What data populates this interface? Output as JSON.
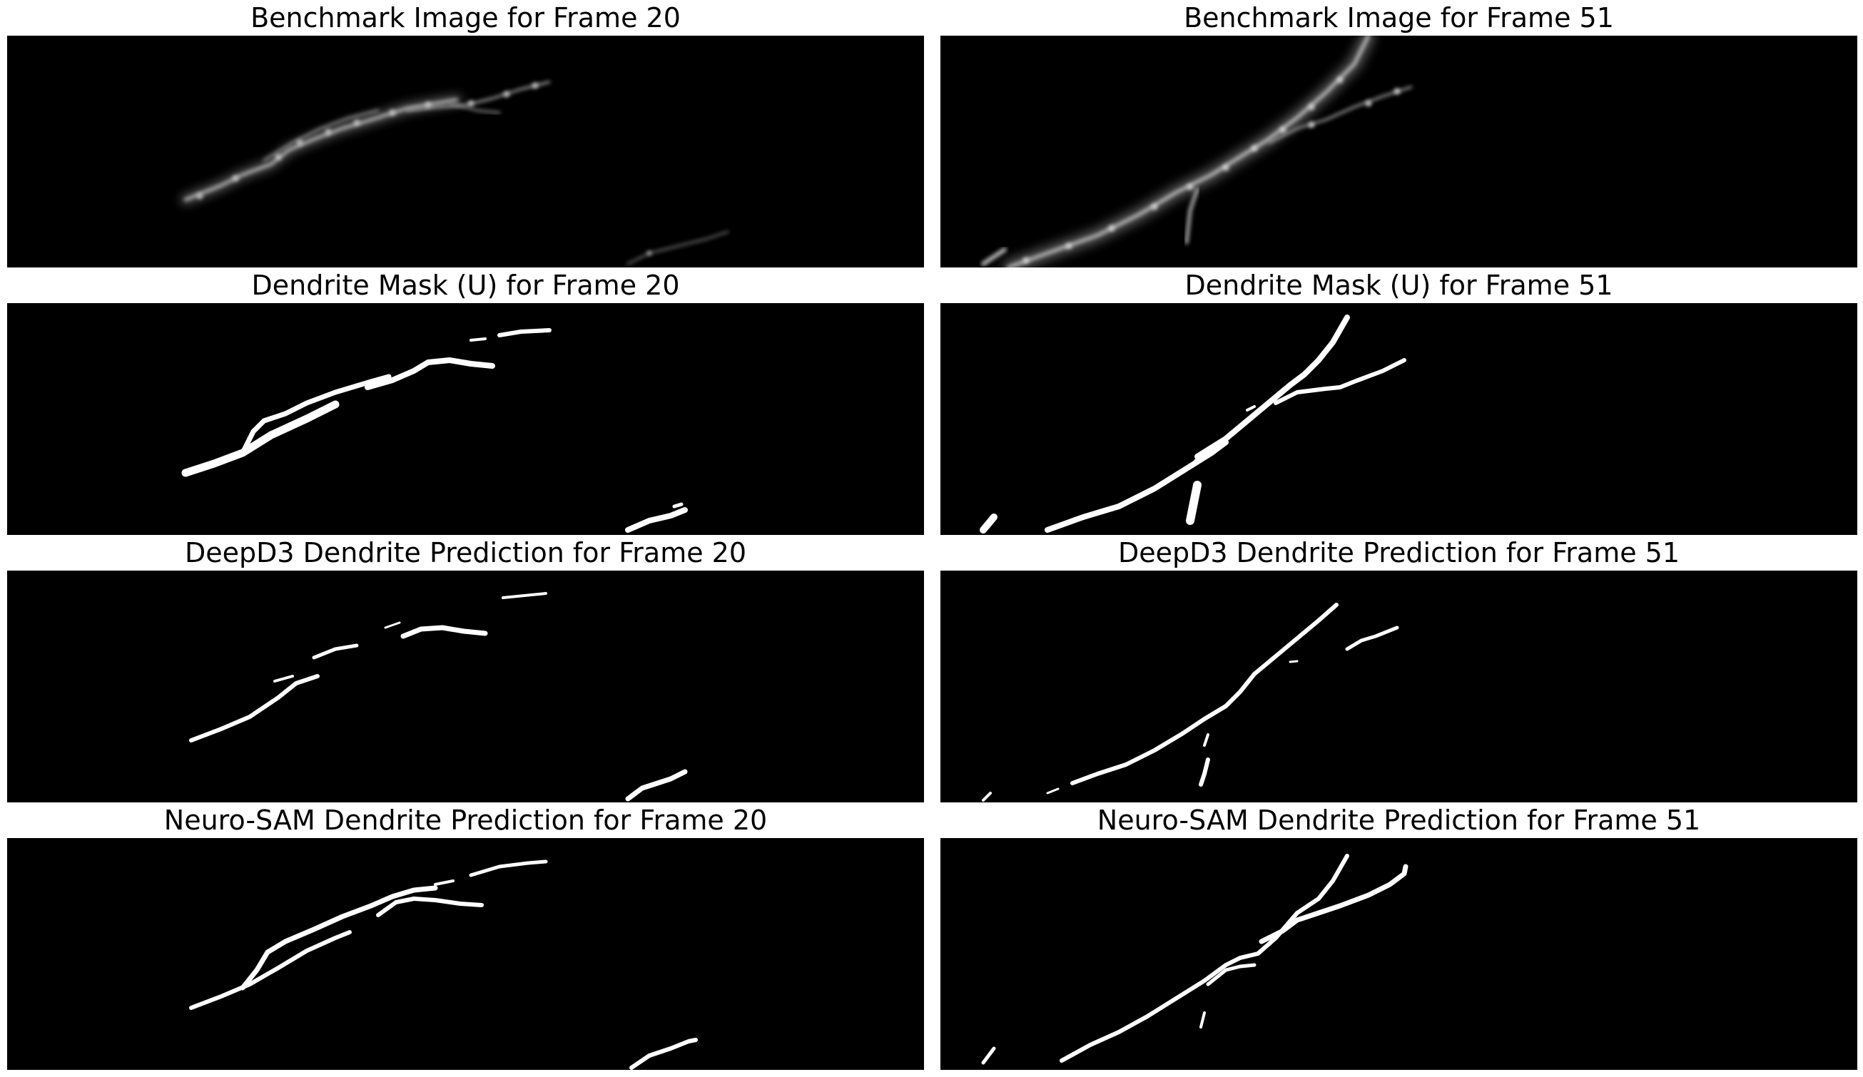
{
  "panels": [
    {
      "id": "benchmark-20",
      "title": "Benchmark Image for Frame 20",
      "kind": "grayscale",
      "frame": 20
    },
    {
      "id": "benchmark-51",
      "title": "Benchmark Image for Frame 51",
      "kind": "grayscale",
      "frame": 51
    },
    {
      "id": "mask-u-20",
      "title": "Dendrite Mask (U) for Frame 20",
      "kind": "mask",
      "frame": 20
    },
    {
      "id": "mask-u-51",
      "title": "Dendrite Mask (U) for Frame 51",
      "kind": "mask",
      "frame": 51
    },
    {
      "id": "deepd3-20",
      "title": "DeepD3 Dendrite Prediction for Frame 20",
      "kind": "mask",
      "frame": 20
    },
    {
      "id": "deepd3-51",
      "title": "DeepD3 Dendrite Prediction for Frame 51",
      "kind": "mask",
      "frame": 51
    },
    {
      "id": "neurosam-20",
      "title": "Neuro-SAM Dendrite Prediction for Frame 20",
      "kind": "mask",
      "frame": 20
    },
    {
      "id": "neurosam-51",
      "title": "Neuro-SAM Dendrite Prediction for Frame 51",
      "kind": "mask",
      "frame": 51
    }
  ],
  "colors": {
    "background": "#ffffff",
    "image": "#000000",
    "mask": "#ffffff",
    "text": "#000000"
  }
}
